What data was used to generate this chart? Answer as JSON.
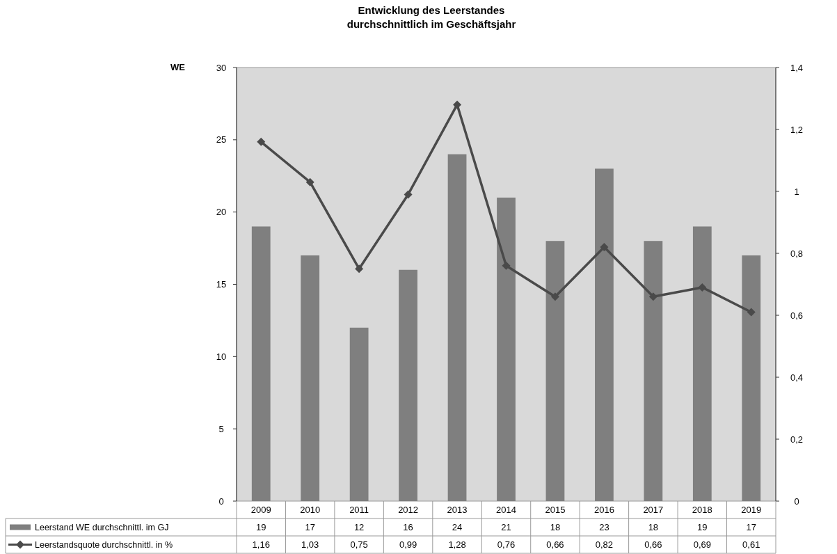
{
  "chart_data": {
    "type": "bar",
    "title": "Entwicklung des Leerstandes",
    "subtitle": "durchschnittlich im Geschäftsjahr",
    "ylabel": "WE",
    "categories": [
      "2009",
      "2010",
      "2011",
      "2012",
      "2013",
      "2014",
      "2015",
      "2016",
      "2017",
      "2018",
      "2019"
    ],
    "series": [
      {
        "name": "Leerstand WE durchschnittl. im GJ",
        "color": "#7f7f7f",
        "values": [
          19,
          17,
          12,
          16,
          24,
          21,
          18,
          23,
          18,
          19,
          17
        ],
        "value_labels": [
          "19",
          "17",
          "12",
          "16",
          "24",
          "21",
          "18",
          "23",
          "18",
          "19",
          "17"
        ]
      },
      {
        "name": "Leerstandsquote durchschnittl. in %",
        "type": "line",
        "axis": "y2",
        "color": "#4a4a4a",
        "marker": "diamond",
        "values": [
          1.16,
          1.03,
          0.75,
          0.99,
          1.28,
          0.76,
          0.66,
          0.82,
          0.66,
          0.69,
          0.61
        ],
        "value_labels": [
          "1,16",
          "1,03",
          "0,75",
          "0,99",
          "1,28",
          "0,76",
          "0,66",
          "0,82",
          "0,66",
          "0,69",
          "0,61"
        ]
      }
    ],
    "ylim": [
      0,
      30
    ],
    "yticks": [
      0,
      5,
      10,
      15,
      20,
      25,
      30
    ],
    "y2lim": [
      0,
      1.4
    ],
    "y2ticks": [
      0,
      {
        "value": 0.2,
        "label": "0,2"
      },
      {
        "value": 0.4,
        "label": "0,4"
      },
      {
        "value": 0.6,
        "label": "0,6"
      },
      {
        "value": 0.8,
        "label": "0,8"
      },
      1,
      {
        "value": 1.2,
        "label": "1,2"
      },
      {
        "value": 1.4,
        "label": "1,4"
      }
    ],
    "legend": "bottom",
    "grid": false
  }
}
